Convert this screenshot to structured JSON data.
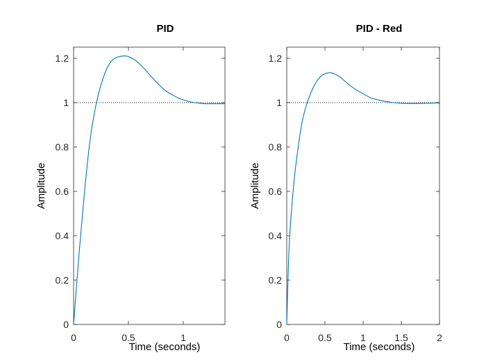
{
  "chart_data": [
    {
      "type": "line",
      "title": "PID",
      "xlabel": "Time (seconds)",
      "ylabel": "Amplitude",
      "xlim": [
        0,
        1.38
      ],
      "ylim": [
        0,
        1.25
      ],
      "xticks": [
        0,
        0.5,
        1
      ],
      "xtick_labels": [
        "0",
        "0.5",
        "1"
      ],
      "yticks": [
        0,
        0.2,
        0.4,
        0.6,
        0.8,
        1,
        1.2
      ],
      "ytick_labels": [
        "0",
        "0.2",
        "0.4",
        "0.6",
        "0.8",
        "1",
        "1.2"
      ],
      "reference_line": 1,
      "grid": false,
      "line_color": "#0072bd",
      "series": [
        {
          "x": [
            0,
            0.05,
            0.1,
            0.15,
            0.2,
            0.25,
            0.3,
            0.35,
            0.4,
            0.45,
            0.48,
            0.5,
            0.55,
            0.6,
            0.65,
            0.7,
            0.75,
            0.8,
            0.85,
            0.9,
            0.95,
            1.0,
            1.05,
            1.1,
            1.15,
            1.2,
            1.25,
            1.3,
            1.38
          ],
          "y": [
            0,
            0.32,
            0.6,
            0.83,
            0.98,
            1.08,
            1.15,
            1.19,
            1.205,
            1.21,
            1.21,
            1.207,
            1.195,
            1.175,
            1.15,
            1.122,
            1.095,
            1.07,
            1.05,
            1.035,
            1.022,
            1.012,
            1.005,
            1.0,
            0.997,
            0.995,
            0.995,
            0.995,
            0.995
          ]
        }
      ]
    },
    {
      "type": "line",
      "title": "PID - Red",
      "xlabel": "Time (seconds)",
      "ylabel": "Amplitude",
      "xlim": [
        0,
        2
      ],
      "ylim": [
        0,
        1.25
      ],
      "xticks": [
        0,
        0.5,
        1,
        1.5,
        2
      ],
      "xtick_labels": [
        "0",
        "0.5",
        "1",
        "1.5",
        "2"
      ],
      "yticks": [
        0,
        0.2,
        0.4,
        0.6,
        0.8,
        1,
        1.2
      ],
      "ytick_labels": [
        "0",
        "0.2",
        "0.4",
        "0.6",
        "0.8",
        "1",
        "1.2"
      ],
      "reference_line": 1,
      "grid": false,
      "line_color": "#0072bd",
      "series": [
        {
          "x": [
            0,
            0.025,
            0.05,
            0.1,
            0.15,
            0.2,
            0.25,
            0.3,
            0.35,
            0.4,
            0.45,
            0.5,
            0.56,
            0.6,
            0.65,
            0.7,
            0.75,
            0.8,
            0.9,
            1.0,
            1.1,
            1.2,
            1.3,
            1.4,
            1.5,
            1.6,
            1.7,
            1.8,
            1.9,
            2.0
          ],
          "y": [
            0,
            0.3,
            0.46,
            0.66,
            0.8,
            0.91,
            0.98,
            1.03,
            1.07,
            1.1,
            1.12,
            1.13,
            1.135,
            1.133,
            1.125,
            1.115,
            1.1,
            1.085,
            1.06,
            1.04,
            1.022,
            1.012,
            1.005,
            1.0,
            0.997,
            0.996,
            0.996,
            0.997,
            0.998,
            0.998
          ]
        }
      ]
    }
  ]
}
